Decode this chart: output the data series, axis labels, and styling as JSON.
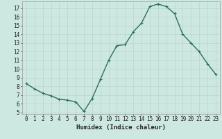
{
  "x": [
    0,
    1,
    2,
    3,
    4,
    5,
    6,
    7,
    8,
    9,
    10,
    11,
    12,
    13,
    14,
    15,
    16,
    17,
    18,
    19,
    20,
    21,
    22,
    23
  ],
  "y": [
    8.3,
    7.7,
    7.2,
    6.9,
    6.5,
    6.4,
    6.2,
    5.1,
    6.6,
    8.8,
    11.0,
    12.7,
    12.8,
    14.3,
    15.3,
    17.2,
    17.5,
    17.2,
    16.4,
    14.0,
    13.0,
    12.0,
    10.6,
    9.4
  ],
  "xlabel": "Humidex (Indice chaleur)",
  "ylim": [
    4.8,
    17.8
  ],
  "xlim": [
    -0.5,
    23.5
  ],
  "yticks": [
    5,
    6,
    7,
    8,
    9,
    10,
    11,
    12,
    13,
    14,
    15,
    16,
    17
  ],
  "xticks": [
    0,
    1,
    2,
    3,
    4,
    5,
    6,
    7,
    8,
    9,
    10,
    11,
    12,
    13,
    14,
    15,
    16,
    17,
    18,
    19,
    20,
    21,
    22,
    23
  ],
  "line_color": "#2d6e5e",
  "marker_color": "#2d6e5e",
  "bg_color": "#cce8e0",
  "grid_color": "#b8d4ce",
  "axis_bg": "#cce8e0",
  "font_color": "#222222",
  "xlabel_fontsize": 6.5,
  "tick_fontsize": 5.5,
  "line_width": 1.0,
  "marker_size": 2.5
}
